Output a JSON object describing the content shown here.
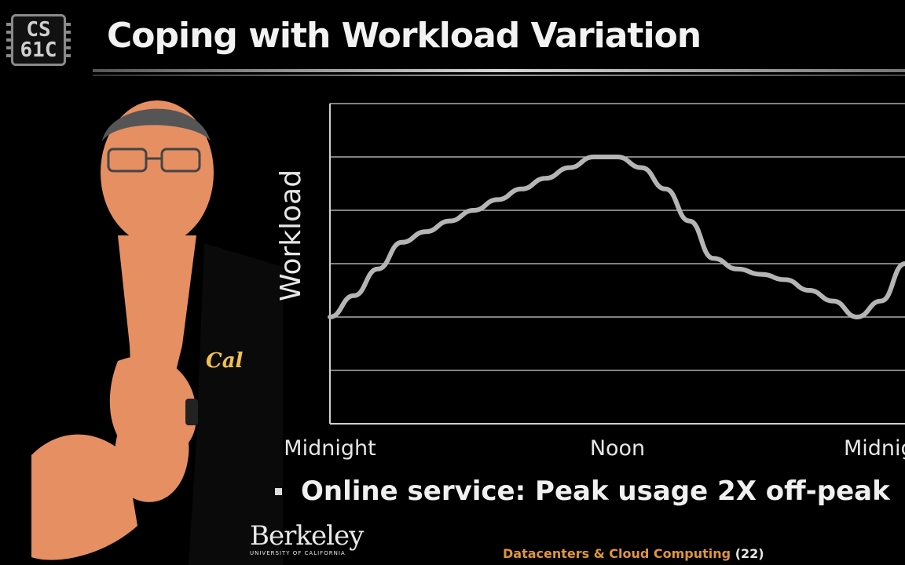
{
  "logo": {
    "line1": "CS",
    "line2": "61C"
  },
  "slide": {
    "title": "Coping with Workload Variation"
  },
  "chart_data": {
    "type": "line",
    "title": "",
    "ylabel": "Workload",
    "x_tick_labels": [
      "Midnight",
      "Noon",
      "Midnight"
    ],
    "x": [
      0,
      1,
      2,
      3,
      4,
      5,
      6,
      7,
      8,
      9,
      10,
      11,
      12,
      13,
      14,
      15,
      16,
      17,
      18,
      19,
      20,
      21,
      22,
      23,
      24
    ],
    "xlim": [
      0,
      24
    ],
    "ylim": [
      0,
      6
    ],
    "grid": true,
    "series": [
      {
        "values": [
          2.0,
          2.4,
          2.9,
          3.4,
          3.6,
          3.8,
          4.0,
          4.2,
          4.4,
          4.6,
          4.8,
          5.0,
          5.0,
          4.8,
          4.4,
          3.8,
          3.1,
          2.9,
          2.8,
          2.7,
          2.5,
          2.3,
          2.0,
          2.3,
          3.0
        ],
        "color": "#b5b5b5"
      }
    ]
  },
  "bullet": {
    "marker": "▪",
    "text": "Online service: Peak usage 2X off-peak"
  },
  "footer": {
    "brand": "Berkeley",
    "brand_sub": "UNIVERSITY OF CALIFORNIA",
    "lecture": "Datacenters & Cloud Computing",
    "page": "(22)"
  },
  "colors": {
    "accent": "#e0953f",
    "background": "#000000",
    "text": "#e9e9e9",
    "skin": "#e68f63",
    "grid": "#cfcfcf"
  },
  "presenter": {
    "shirt_logo": "Cal"
  }
}
